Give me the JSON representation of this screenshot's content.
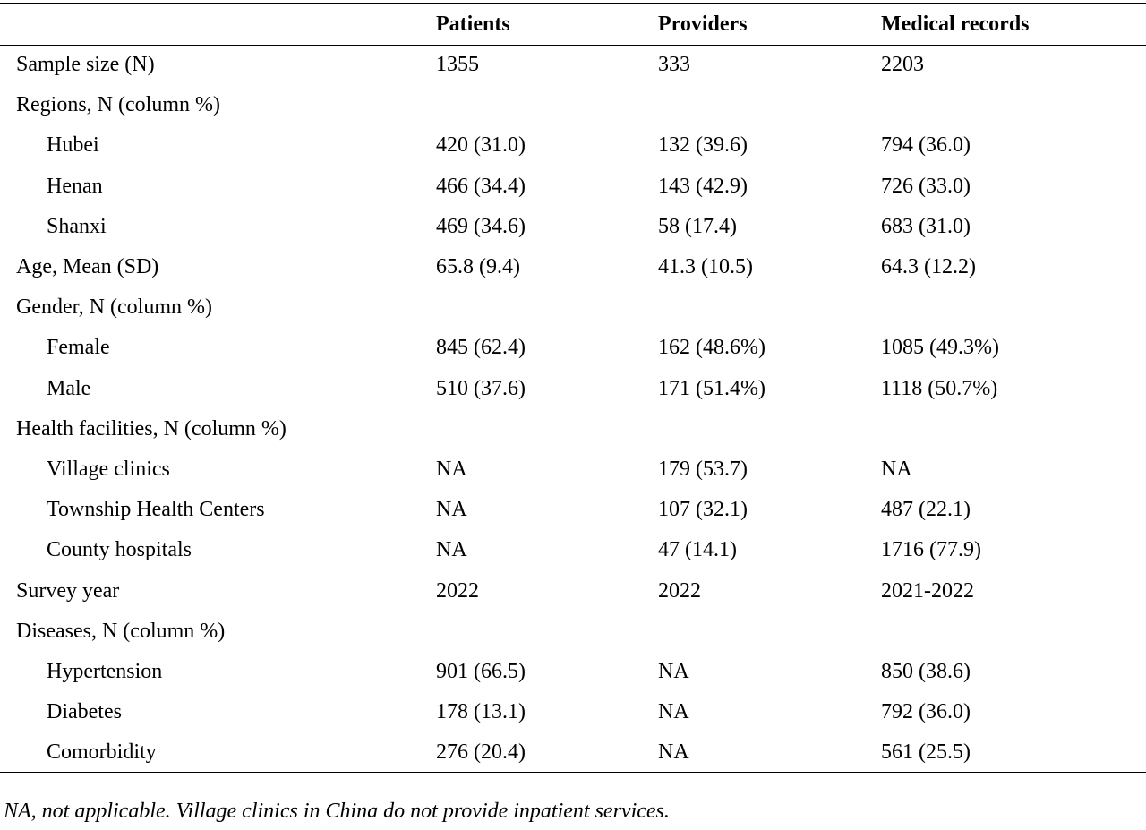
{
  "table": {
    "headers": [
      "",
      "Patients",
      "Providers",
      "Medical records"
    ],
    "rows": [
      {
        "label": "Sample size (N)",
        "indent": false,
        "patients": "1355",
        "providers": "333",
        "records": "2203"
      },
      {
        "label": "Regions, N (column %)",
        "indent": false,
        "patients": "",
        "providers": "",
        "records": ""
      },
      {
        "label": "Hubei",
        "indent": true,
        "patients": "420 (31.0)",
        "providers": "132 (39.6)",
        "records": "794 (36.0)"
      },
      {
        "label": "Henan",
        "indent": true,
        "patients": "466 (34.4)",
        "providers": "143 (42.9)",
        "records": "726 (33.0)"
      },
      {
        "label": "Shanxi",
        "indent": true,
        "patients": "469 (34.6)",
        "providers": "58 (17.4)",
        "records": "683 (31.0)"
      },
      {
        "label": "Age, Mean (SD)",
        "indent": false,
        "patients": "65.8 (9.4)",
        "providers": "41.3 (10.5)",
        "records": "64.3 (12.2)"
      },
      {
        "label": "Gender, N (column %)",
        "indent": false,
        "patients": "",
        "providers": "",
        "records": ""
      },
      {
        "label": "Female",
        "indent": true,
        "patients": "845 (62.4)",
        "providers": "162 (48.6%)",
        "records": "1085 (49.3%)"
      },
      {
        "label": "Male",
        "indent": true,
        "patients": "510 (37.6)",
        "providers": "171 (51.4%)",
        "records": "1118 (50.7%)"
      },
      {
        "label": "Health facilities, N (column %)",
        "indent": false,
        "patients": "",
        "providers": "",
        "records": ""
      },
      {
        "label": "Village clinics",
        "indent": true,
        "patients": "NA",
        "providers": "179 (53.7)",
        "records": "NA"
      },
      {
        "label": "Township Health Centers",
        "indent": true,
        "patients": "NA",
        "providers": "107 (32.1)",
        "records": "487 (22.1)"
      },
      {
        "label": "County hospitals",
        "indent": true,
        "patients": "NA",
        "providers": "47 (14.1)",
        "records": "1716 (77.9)"
      },
      {
        "label": "Survey year",
        "indent": false,
        "patients": "2022",
        "providers": "2022",
        "records": "2021-2022"
      },
      {
        "label": "Diseases, N (column %)",
        "indent": false,
        "patients": "",
        "providers": "",
        "records": ""
      },
      {
        "label": "Hypertension",
        "indent": true,
        "patients": "901 (66.5)",
        "providers": "NA",
        "records": "850 (38.6)"
      },
      {
        "label": "Diabetes",
        "indent": true,
        "patients": "178 (13.1)",
        "providers": "NA",
        "records": "792 (36.0)"
      },
      {
        "label": "Comorbidity",
        "indent": true,
        "patients": "276 (20.4)",
        "providers": "NA",
        "records": "561 (25.5)"
      }
    ]
  },
  "footnote": "NA, not applicable. Village clinics in China do not provide inpatient services."
}
